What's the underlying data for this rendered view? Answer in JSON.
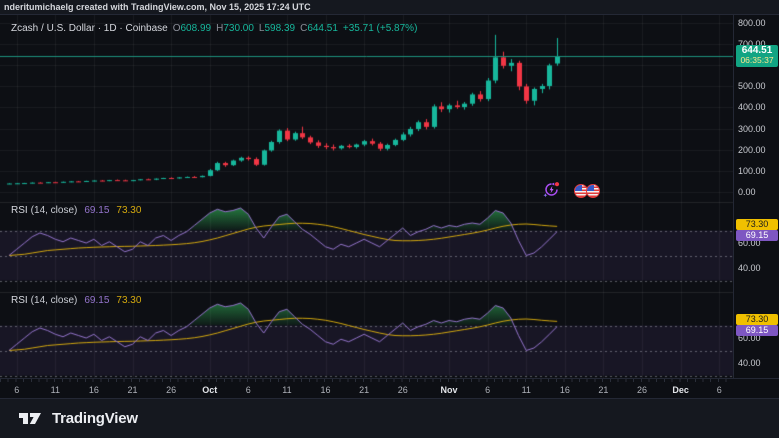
{
  "top_bar": {
    "attribution": "nderitumichaelg created with TradingView.com, Nov 15, 2025 17:24 UTC"
  },
  "legend": {
    "title": "Zcash / U.S. Dollar · 1D · Coinbase",
    "ohlc": [
      {
        "k": "O",
        "v": "608.99"
      },
      {
        "k": "H",
        "v": "730.00"
      },
      {
        "k": "L",
        "v": "598.39"
      },
      {
        "k": "C",
        "v": "644.51"
      }
    ],
    "change": "+35.71 (+5.87%)"
  },
  "price_badge": {
    "price": "644.51",
    "countdown": "06:35:37"
  },
  "rsi_panels": [
    {
      "name": "RSI",
      "params": "(14, close)",
      "value": "69.15",
      "ma": "73.30",
      "badge_ma": "73.30",
      "badge_value": "69.15",
      "axis_labels": [
        "60.00",
        "40.00"
      ]
    },
    {
      "name": "RSI",
      "params": "(14, close)",
      "value": "69.15",
      "ma": "73.30",
      "badge_ma": "73.30",
      "badge_value": "69.15",
      "axis_labels": [
        "60.00",
        "40.00"
      ]
    }
  ],
  "price_axis_labels": [
    "800.00",
    "700.00",
    "500.00",
    "400.00",
    "300.00",
    "200.00",
    "100.00",
    "0.00"
  ],
  "time_axis": {
    "ticks": [
      {
        "label": "6",
        "i": 1
      },
      {
        "label": "11",
        "i": 6
      },
      {
        "label": "16",
        "i": 11
      },
      {
        "label": "21",
        "i": 16
      },
      {
        "label": "26",
        "i": 21
      },
      {
        "label": "Oct",
        "i": 26,
        "month": true
      },
      {
        "label": "6",
        "i": 31
      },
      {
        "label": "11",
        "i": 36
      },
      {
        "label": "16",
        "i": 41
      },
      {
        "label": "21",
        "i": 46
      },
      {
        "label": "26",
        "i": 51
      },
      {
        "label": "Nov",
        "i": 57,
        "month": true
      },
      {
        "label": "6",
        "i": 62
      },
      {
        "label": "11",
        "i": 67
      },
      {
        "label": "16",
        "i": 72
      },
      {
        "label": "21",
        "i": 77
      },
      {
        "label": "26",
        "i": 82
      },
      {
        "label": "Dec",
        "i": 87,
        "month": true
      },
      {
        "label": "6",
        "i": 92
      }
    ]
  },
  "footer": {
    "brand": "TradingView"
  },
  "icons": {
    "replay": "lightning-replay-icon",
    "flags": "us-flag-events-icon"
  },
  "colors": {
    "up": "#17b79c",
    "down": "#f23645",
    "rsi_line": "#9575cd",
    "rsi_ma": "#d4a90e",
    "price_line": "#1d927c",
    "overbought_fill": "#2e9e4f",
    "badge_price_bg": "#12a483",
    "badge_ma_bg": "#f0c000",
    "badge_ma_text": "#1b1b1b",
    "badge_value_bg": "#7e57c2",
    "badge_value_text": "#ffffff",
    "grid": "rgba(255,255,255,0.055)",
    "band": "rgba(126,87,194,0.10)",
    "dash": "rgba(209,212,220,0.40)",
    "separator": "rgba(255,255,255,0.09)"
  },
  "chart_data": {
    "type": "candlestick",
    "title": "Zcash / U.S. Dollar",
    "interval": "1D",
    "exchange": "Coinbase",
    "last_price": 644.51,
    "price_ylim": [
      0,
      840
    ],
    "price_grid_step": 100,
    "rsi_levels": [
      70,
      50,
      30
    ],
    "dates": [
      "Sep 5",
      "Sep 6",
      "Sep 7",
      "Sep 8",
      "Sep 9",
      "Sep 10",
      "Sep 11",
      "Sep 12",
      "Sep 13",
      "Sep 14",
      "Sep 15",
      "Sep 16",
      "Sep 17",
      "Sep 18",
      "Sep 19",
      "Sep 20",
      "Sep 21",
      "Sep 22",
      "Sep 23",
      "Sep 24",
      "Sep 25",
      "Sep 26",
      "Sep 27",
      "Sep 28",
      "Sep 29",
      "Sep 30",
      "Oct 1",
      "Oct 2",
      "Oct 3",
      "Oct 4",
      "Oct 5",
      "Oct 6",
      "Oct 7",
      "Oct 8",
      "Oct 9",
      "Oct 10",
      "Oct 11",
      "Oct 12",
      "Oct 13",
      "Oct 14",
      "Oct 15",
      "Oct 16",
      "Oct 17",
      "Oct 18",
      "Oct 19",
      "Oct 20",
      "Oct 21",
      "Oct 22",
      "Oct 23",
      "Oct 24",
      "Oct 25",
      "Oct 26",
      "Oct 27",
      "Oct 28",
      "Oct 29",
      "Oct 30",
      "Oct 31",
      "Nov 1",
      "Nov 2",
      "Nov 3",
      "Nov 4",
      "Nov 5",
      "Nov 6",
      "Nov 7",
      "Nov 8",
      "Nov 9",
      "Nov 10",
      "Nov 11",
      "Nov 12",
      "Nov 13",
      "Nov 14",
      "Nov 15"
    ],
    "ohlc": [
      [
        38,
        40,
        36,
        39
      ],
      [
        39,
        41,
        37,
        40
      ],
      [
        40,
        42,
        38,
        41
      ],
      [
        41,
        44,
        40,
        43
      ],
      [
        43,
        45,
        41,
        42
      ],
      [
        42,
        46,
        41,
        45
      ],
      [
        45,
        47,
        43,
        44
      ],
      [
        44,
        48,
        43,
        47
      ],
      [
        47,
        50,
        45,
        49
      ],
      [
        49,
        51,
        46,
        47
      ],
      [
        47,
        52,
        46,
        51
      ],
      [
        51,
        54,
        49,
        53
      ],
      [
        53,
        55,
        50,
        51
      ],
      [
        51,
        56,
        50,
        55
      ],
      [
        55,
        58,
        53,
        54
      ],
      [
        54,
        57,
        51,
        52
      ],
      [
        52,
        56,
        50,
        55
      ],
      [
        55,
        60,
        54,
        59
      ],
      [
        59,
        62,
        56,
        57
      ],
      [
        57,
        63,
        55,
        62
      ],
      [
        62,
        66,
        60,
        65
      ],
      [
        65,
        68,
        61,
        63
      ],
      [
        63,
        69,
        62,
        68
      ],
      [
        68,
        72,
        65,
        70
      ],
      [
        70,
        74,
        66,
        69
      ],
      [
        69,
        77,
        68,
        75
      ],
      [
        75,
        108,
        73,
        102
      ],
      [
        102,
        142,
        98,
        136
      ],
      [
        136,
        142,
        118,
        126
      ],
      [
        126,
        152,
        122,
        148
      ],
      [
        148,
        166,
        142,
        161
      ],
      [
        161,
        168,
        148,
        155
      ],
      [
        155,
        163,
        122,
        128
      ],
      [
        128,
        200,
        124,
        196
      ],
      [
        196,
        242,
        190,
        236
      ],
      [
        236,
        296,
        228,
        290
      ],
      [
        290,
        302,
        240,
        248
      ],
      [
        248,
        285,
        242,
        278
      ],
      [
        278,
        309,
        250,
        258
      ],
      [
        258,
        266,
        226,
        234
      ],
      [
        234,
        244,
        208,
        218
      ],
      [
        218,
        230,
        202,
        212
      ],
      [
        212,
        224,
        196,
        206
      ],
      [
        206,
        222,
        200,
        218
      ],
      [
        218,
        226,
        206,
        212
      ],
      [
        212,
        228,
        205,
        224
      ],
      [
        224,
        246,
        216,
        240
      ],
      [
        240,
        252,
        220,
        228
      ],
      [
        228,
        236,
        194,
        204
      ],
      [
        204,
        228,
        196,
        222
      ],
      [
        222,
        252,
        216,
        246
      ],
      [
        246,
        282,
        240,
        272
      ],
      [
        272,
        308,
        262,
        298
      ],
      [
        298,
        338,
        288,
        330
      ],
      [
        330,
        345,
        296,
        308
      ],
      [
        308,
        415,
        300,
        405
      ],
      [
        405,
        425,
        378,
        392
      ],
      [
        392,
        418,
        376,
        410
      ],
      [
        410,
        432,
        394,
        402
      ],
      [
        402,
        426,
        390,
        418
      ],
      [
        418,
        470,
        408,
        462
      ],
      [
        462,
        478,
        428,
        440
      ],
      [
        440,
        540,
        430,
        528
      ],
      [
        528,
        745,
        515,
        638
      ],
      [
        638,
        665,
        585,
        598
      ],
      [
        598,
        630,
        572,
        612
      ],
      [
        612,
        622,
        482,
        500
      ],
      [
        500,
        512,
        418,
        432
      ],
      [
        432,
        495,
        410,
        488
      ],
      [
        488,
        512,
        468,
        502
      ],
      [
        502,
        608,
        486,
        600
      ],
      [
        608.99,
        730,
        598.39,
        644.51
      ]
    ],
    "rsi": [
      50,
      55,
      60,
      65,
      68,
      66,
      63,
      61,
      64,
      62,
      60,
      63,
      58,
      61,
      57,
      53,
      55,
      61,
      58,
      64,
      66,
      62,
      66,
      69,
      74,
      79,
      84,
      87,
      85,
      86,
      88,
      83,
      72,
      64,
      73,
      81,
      83,
      77,
      71,
      67,
      62,
      57,
      55,
      59,
      57,
      60,
      63,
      60,
      57,
      62,
      67,
      72,
      66,
      69,
      71,
      74,
      72,
      74,
      73,
      75,
      76,
      75,
      80,
      86,
      84,
      76,
      62,
      50,
      52,
      57,
      63,
      69.15
    ],
    "rsi_ma": [
      50.0,
      50.5,
      51.0,
      52.0,
      53.0,
      54.0,
      54.5,
      55.0,
      55.5,
      56.0,
      56.3,
      56.6,
      56.8,
      57.0,
      57.2,
      57.3,
      57.4,
      57.6,
      57.8,
      58.0,
      58.3,
      58.6,
      59.0,
      59.5,
      60.2,
      61.2,
      62.5,
      64.0,
      65.8,
      67.6,
      69.4,
      71.2,
      72.6,
      73.6,
      74.2,
      74.8,
      75.4,
      75.8,
      75.8,
      75.6,
      75.0,
      74.2,
      73.0,
      71.6,
      70.0,
      68.4,
      66.8,
      65.4,
      64.0,
      62.8,
      62.0,
      61.8,
      61.8,
      62.0,
      62.4,
      63.0,
      63.8,
      64.8,
      65.8,
      66.8,
      67.8,
      69.0,
      70.4,
      72.0,
      73.4,
      74.4,
      75.0,
      75.2,
      74.8,
      74.2,
      73.7,
      73.3
    ]
  }
}
